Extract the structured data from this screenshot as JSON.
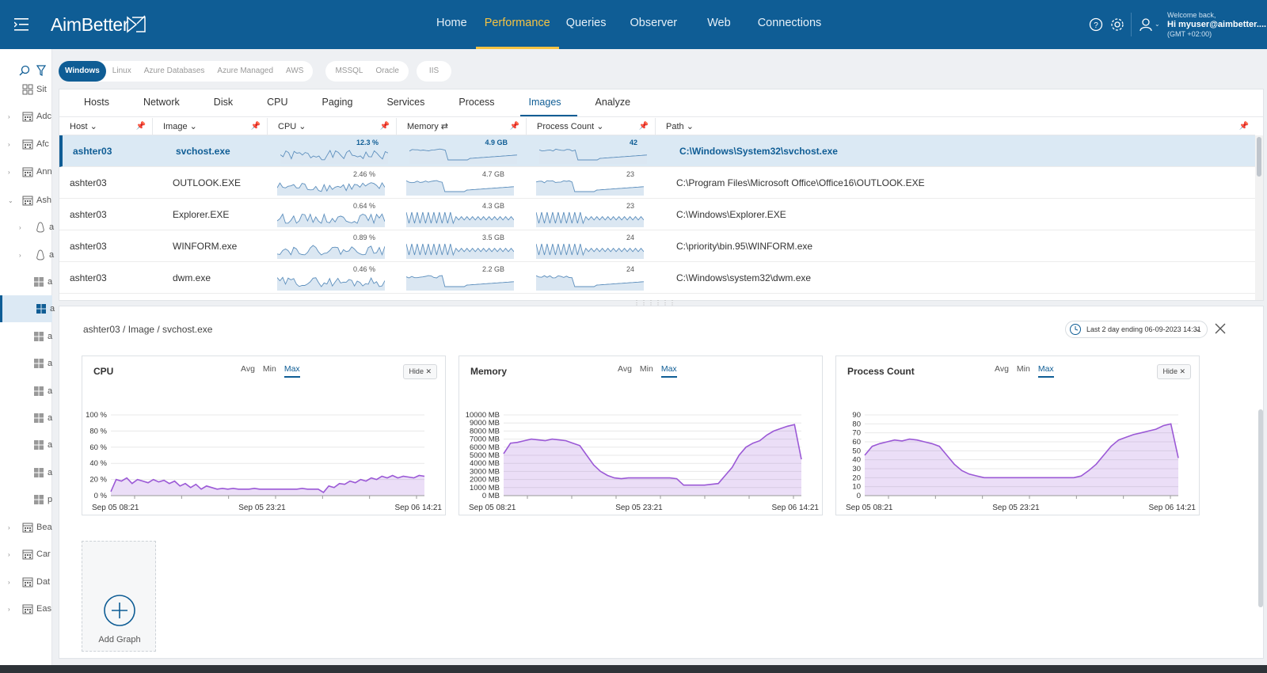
{
  "app": {
    "logo": "AimBetter",
    "nav": [
      "Home",
      "Performance",
      "Queries",
      "Observer",
      "Web",
      "Connections"
    ],
    "active_nav": "Performance",
    "welcome": "Welcome back,",
    "user": "Hi myuser@aimbetter....",
    "timezone": "(GMT +02:00)"
  },
  "sidebar": {
    "items": [
      {
        "label": "Sit",
        "icon": "grid-icon"
      },
      {
        "label": "Adc",
        "icon": "building-icon"
      },
      {
        "label": "Afc",
        "icon": "building-icon"
      },
      {
        "label": "Ann",
        "icon": "building-icon"
      },
      {
        "label": "Ash",
        "icon": "building-icon"
      },
      {
        "label": "a",
        "icon": "linux-icon"
      },
      {
        "label": "a",
        "icon": "linux-icon"
      },
      {
        "label": "a",
        "icon": "windows-icon"
      },
      {
        "label": "a",
        "icon": "windows-icon"
      },
      {
        "label": "a",
        "icon": "windows-icon"
      },
      {
        "label": "a",
        "icon": "windows-icon"
      },
      {
        "label": "a",
        "icon": "windows-icon"
      },
      {
        "label": "a",
        "icon": "windows-icon"
      },
      {
        "label": "a",
        "icon": "windows-icon"
      },
      {
        "label": "a",
        "icon": "windows-icon"
      },
      {
        "label": "p",
        "icon": "windows-icon"
      },
      {
        "label": "Bea",
        "icon": "building-icon"
      },
      {
        "label": "Car",
        "icon": "building-icon"
      },
      {
        "label": "Dat",
        "icon": "building-icon"
      },
      {
        "label": "Eas",
        "icon": "building-icon"
      }
    ]
  },
  "filters": {
    "group1": [
      "Windows",
      "Linux",
      "Azure Databases",
      "Azure Managed",
      "AWS"
    ],
    "group2": [
      "MSSQL",
      "Oracle"
    ],
    "group3": [
      "IIS"
    ],
    "active": "Windows"
  },
  "tabs": [
    "Hosts",
    "Network",
    "Disk",
    "CPU",
    "Paging",
    "Services",
    "Process",
    "Images",
    "Analyze"
  ],
  "active_tab": "Images",
  "table": {
    "columns": [
      "Host",
      "Image",
      "CPU",
      "Memory",
      "Process Count",
      "Path"
    ],
    "rows": [
      {
        "host": "ashter03",
        "image": "svchost.exe",
        "cpu": "12.3 %",
        "memory": "4.9 GB",
        "count": "42",
        "path": "C:\\Windows\\System32\\svchost.exe"
      },
      {
        "host": "ashter03",
        "image": "OUTLOOK.EXE",
        "cpu": "2.46 %",
        "memory": "4.7 GB",
        "count": "23",
        "path": "C:\\Program Files\\Microsoft Office\\Office16\\OUTLOOK.EXE"
      },
      {
        "host": "ashter03",
        "image": "Explorer.EXE",
        "cpu": "0.64 %",
        "memory": "4.3 GB",
        "count": "23",
        "path": "C:\\Windows\\Explorer.EXE"
      },
      {
        "host": "ashter03",
        "image": "WINFORM.exe",
        "cpu": "0.89 %",
        "memory": "3.5 GB",
        "count": "24",
        "path": "C:\\priority\\bin.95\\WINFORM.exe"
      },
      {
        "host": "ashter03",
        "image": "dwm.exe",
        "cpu": "0.46 %",
        "memory": "2.2 GB",
        "count": "24",
        "path": "C:\\Windows\\system32\\dwm.exe"
      }
    ]
  },
  "details": {
    "breadcrumb": "ashter03 / Image / svchost.exe",
    "time_range": "Last 2 day ending  06-09-2023 14:31",
    "modes": [
      "Avg",
      "Min",
      "Max"
    ],
    "active_mode": "Max",
    "hide_label": "Hide",
    "add_graph": "Add Graph"
  },
  "chart_data": [
    {
      "type": "area",
      "title": "CPU",
      "x_labels": [
        "Sep 05 08:21",
        "Sep 05 23:21",
        "Sep 06 14:21"
      ],
      "y_ticks": [
        "0 %",
        "20 %",
        "40 %",
        "60 %",
        "80 %",
        "100 %"
      ],
      "ylim": [
        0,
        100
      ],
      "color": "#9b59d6",
      "values": [
        5,
        20,
        18,
        22,
        15,
        20,
        18,
        16,
        20,
        17,
        19,
        15,
        18,
        12,
        15,
        10,
        14,
        8,
        12,
        10,
        8,
        9,
        8,
        9,
        8,
        8,
        8,
        9,
        8,
        8,
        8,
        8,
        8,
        8,
        8,
        8,
        9,
        8,
        8,
        8,
        4,
        12,
        10,
        15,
        14,
        18,
        16,
        20,
        18,
        22,
        20,
        24,
        22,
        25,
        22,
        24,
        23,
        22,
        25,
        24
      ]
    },
    {
      "type": "area",
      "title": "Memory",
      "x_labels": [
        "Sep 05 08:21",
        "Sep 05 23:21",
        "Sep 06 14:21"
      ],
      "y_ticks": [
        "0 MB",
        "1000 MB",
        "2000 MB",
        "3000 MB",
        "4000 MB",
        "5000 MB",
        "6000 MB",
        "7000 MB",
        "8000 MB",
        "9000 MB",
        "10000 MB"
      ],
      "ylim": [
        0,
        10000
      ],
      "color": "#9b59d6",
      "values": [
        5200,
        6500,
        6600,
        6800,
        7000,
        6900,
        6800,
        7000,
        6900,
        6800,
        6500,
        6200,
        5000,
        3800,
        3000,
        2500,
        2200,
        2100,
        2200,
        2200,
        2200,
        2200,
        2200,
        2200,
        2200,
        2100,
        1300,
        1300,
        1300,
        1300,
        1400,
        1500,
        2500,
        3500,
        5000,
        6000,
        6500,
        6800,
        7500,
        8000,
        8300,
        8600,
        8800,
        4500
      ]
    },
    {
      "type": "area",
      "title": "Process Count",
      "x_labels": [
        "Sep 05 08:21",
        "Sep 05 23:21",
        "Sep 06 14:21"
      ],
      "y_ticks": [
        "0",
        "10",
        "20",
        "30",
        "40",
        "50",
        "60",
        "70",
        "80",
        "90"
      ],
      "ylim": [
        0,
        90
      ],
      "color": "#9b59d6",
      "values": [
        45,
        55,
        58,
        60,
        62,
        61,
        63,
        62,
        60,
        58,
        55,
        45,
        35,
        28,
        24,
        22,
        20,
        20,
        20,
        20,
        20,
        20,
        20,
        20,
        20,
        20,
        20,
        20,
        20,
        22,
        28,
        35,
        45,
        55,
        62,
        65,
        68,
        70,
        72,
        74,
        78,
        80,
        42
      ]
    }
  ]
}
